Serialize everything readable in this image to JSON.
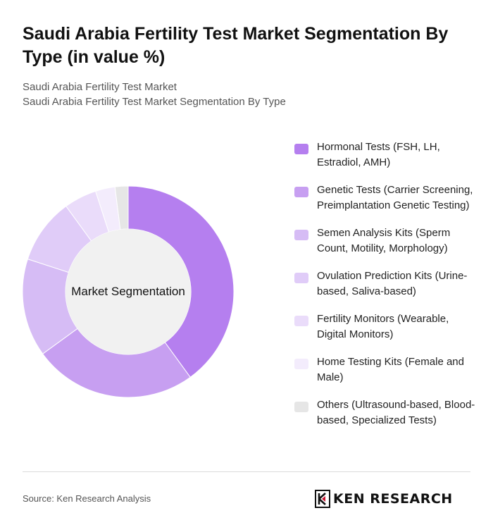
{
  "title": "Saudi Arabia Fertility Test Market Segmentation By Type (in value %)",
  "subtitle_line1": "Saudi Arabia Fertility Test Market",
  "subtitle_line2": "Saudi Arabia Fertility Test Market Segmentation By Type",
  "center_label": "Market Segmentation",
  "source": "Source: Ken Research Analysis",
  "logo": {
    "text": "KEN RESEARCH",
    "icon": "ken-research-logo-icon"
  },
  "chart_data": {
    "type": "pie",
    "donut": true,
    "categories": [
      "Hormonal Tests (FSH, LH, Estradiol, AMH)",
      "Genetic Tests (Carrier Screening, Preimplantation Genetic Testing)",
      "Semen Analysis Kits (Sperm Count, Motility, Morphology)",
      "Ovulation Prediction Kits (Urine-based, Saliva-based)",
      "Fertility Monitors (Wearable, Digital Monitors)",
      "Home Testing Kits (Female and Male)",
      "Others (Ultrasound-based, Blood-based, Specialized Tests)"
    ],
    "values": [
      40,
      25,
      15,
      10,
      5,
      3,
      2
    ],
    "colors": [
      "#b57fef",
      "#c79ff1",
      "#d6bcf5",
      "#e0ccf8",
      "#eadcfa",
      "#f3ecfc",
      "#e6e6e6"
    ],
    "legend_position": "right"
  }
}
